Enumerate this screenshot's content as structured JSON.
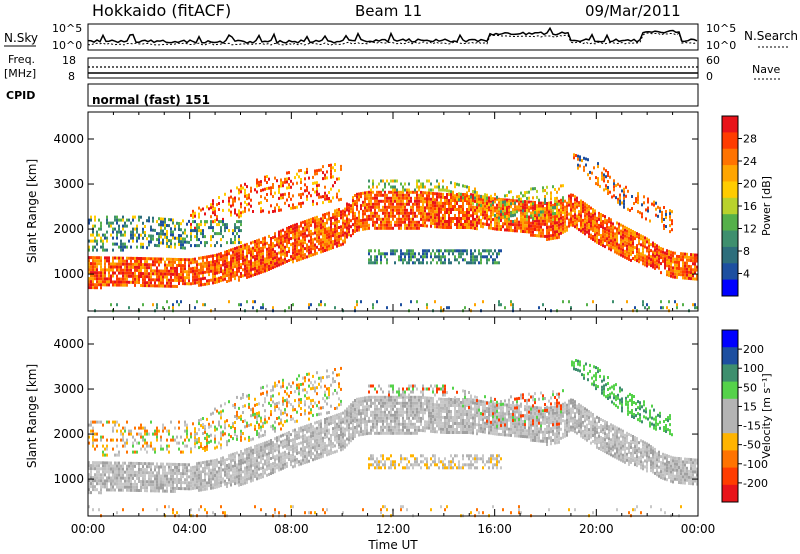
{
  "header": {
    "station": "Hokkaido (fitACF)",
    "beam": "Beam 11",
    "date": "09/Mar/2011"
  },
  "params": {
    "nsky_label": "N.Sky",
    "nsky_ticks": [
      "10^5",
      "10^0"
    ],
    "nsearch_label": "N.Search",
    "freq_label_1": "Freq.",
    "freq_label_2": "[MHz]",
    "freq_ticks": [
      "18",
      "8"
    ],
    "nave_label": "Nave",
    "nave_ticks": [
      "60",
      "0"
    ],
    "cpid_label": "CPID",
    "cpid_value": "normal (fast) 151"
  },
  "chart_data": {
    "type": "heatmap",
    "xlabel": "Time UT",
    "x_ticks": [
      "00:00",
      "04:00",
      "08:00",
      "12:00",
      "16:00",
      "20:00",
      "00:00"
    ],
    "xlim_hours": [
      0,
      24
    ],
    "ylabel": "Slant Range [km]",
    "ylim_km": [
      180,
      4600
    ],
    "y_ticks": [
      1000,
      2000,
      3000,
      4000
    ],
    "panels": [
      {
        "name": "power",
        "colorbar_label": "Power [dB]",
        "colorbar_ticks": [
          "28",
          "24",
          "20",
          "16",
          "12",
          "8",
          "4"
        ],
        "colorbar_colors": [
          "#e8131a",
          "#ff3c00",
          "#ff7300",
          "#ffa500",
          "#ffcc00",
          "#b9d22c",
          "#55b04a",
          "#3e8f6e",
          "#2d6e7c",
          "#1d4fa0",
          "#0000ff"
        ],
        "layers": [
          {
            "t": [
              0,
              2,
              4,
              5,
              6,
              7,
              8,
              9,
              10,
              10.5,
              11,
              12,
              13,
              14,
              15,
              16,
              17,
              18,
              18.5,
              19,
              20,
              21,
              22,
              22.5,
              23,
              24
            ],
            "lo": [
              720,
              750,
              760,
              830,
              900,
              1100,
              1300,
              1500,
              1700,
              2000,
              2050,
              2050,
              2050,
              2050,
              2050,
              2000,
              1950,
              1800,
              1850,
              2100,
              1700,
              1400,
              1200,
              1050,
              900,
              900
            ],
            "hi": [
              1400,
              1380,
              1350,
              1450,
              1650,
              1850,
              2100,
              2300,
              2500,
              2800,
              2850,
              2850,
              2850,
              2800,
              2800,
              2700,
              2650,
              2600,
              2650,
              2800,
              2400,
              2100,
              1800,
              1600,
              1500,
              1450
            ],
            "palette": [
              "#e8131a",
              "#ff3c00",
              "#ff7300",
              "#ffa500"
            ],
            "density": 0.85
          },
          {
            "t": [
              4,
              5,
              6,
              7,
              8,
              9,
              10
            ],
            "lo": [
              2000,
              2200,
              2300,
              2400,
              2500,
              2600,
              2700
            ],
            "hi": [
              2400,
              2700,
              3000,
              3200,
              3300,
              3400,
              3500
            ],
            "palette": [
              "#e8131a",
              "#ff3c00",
              "#ff7300",
              "#ffcc00"
            ],
            "density": 0.3
          },
          {
            "t": [
              0,
              2,
              4,
              6
            ],
            "lo": [
              1500,
              1600,
              1600,
              1700
            ],
            "hi": [
              2300,
              2300,
              2200,
              2200
            ],
            "palette": [
              "#55b04a",
              "#3e8f6e",
              "#ffcc00",
              "#1d4fa0",
              "#2d6e7c"
            ],
            "density": 0.45
          },
          {
            "t": [
              11,
              13,
              15,
              16.3
            ],
            "lo": [
              1250,
              1250,
              1250,
              1250
            ],
            "hi": [
              1550,
              1550,
              1550,
              1550
            ],
            "palette": [
              "#1d4fa0",
              "#2d6e7c",
              "#55b04a",
              "#3e8f6e"
            ],
            "density": 0.55
          },
          {
            "t": [
              11,
              14,
              16,
              17,
              18.7
            ],
            "lo": [
              2850,
              2850,
              2200,
              2200,
              2200
            ],
            "hi": [
              3100,
              3100,
              2800,
              2900,
              3000
            ],
            "palette": [
              "#ffa500",
              "#ffcc00",
              "#b9d22c",
              "#55b04a",
              "#3e8f6e"
            ],
            "density": 0.35
          },
          {
            "t": [
              19,
              20,
              21,
              22,
              23
            ],
            "lo": [
              3500,
              3000,
              2500,
              2200,
              1900
            ],
            "hi": [
              3700,
              3500,
              3000,
              2700,
              2400
            ],
            "palette": [
              "#ff3c00",
              "#ff7300",
              "#ffa500",
              "#1d4fa0"
            ],
            "density": 0.35
          },
          {
            "t": [
              0,
              24
            ],
            "lo": [
              200,
              200
            ],
            "hi": [
              420,
              420
            ],
            "palette": [
              "#1d4fa0",
              "#3e8f6e",
              "#ffa500",
              "#55b04a"
            ],
            "density": 0.08
          }
        ]
      },
      {
        "name": "velocity",
        "colorbar_label": "Velocity [m s⁻¹]",
        "colorbar_ticks": [
          "200",
          "100",
          "50",
          "15",
          "-15",
          "-50",
          "-100",
          "-200"
        ],
        "colorbar_colors": [
          "#0000ff",
          "#1d4fa0",
          "#3e8f6e",
          "#55d24a",
          "#b4b4b4",
          "#b4b4b4",
          "#ffb400",
          "#ff7300",
          "#ff3c00",
          "#e8131a"
        ],
        "layers": [
          {
            "t": [
              0,
              2,
              4,
              5,
              6,
              7,
              8,
              9,
              10,
              10.5,
              11,
              12,
              13,
              14,
              15,
              16,
              17,
              18,
              18.5,
              19,
              20,
              21,
              22,
              22.5,
              23,
              24
            ],
            "lo": [
              720,
              750,
              760,
              830,
              900,
              1100,
              1300,
              1500,
              1700,
              2000,
              2050,
              2050,
              2050,
              2050,
              2050,
              2000,
              1950,
              1800,
              1850,
              2100,
              1700,
              1400,
              1200,
              1050,
              900,
              900
            ],
            "hi": [
              1400,
              1380,
              1350,
              1450,
              1650,
              1850,
              2100,
              2300,
              2500,
              2800,
              2850,
              2850,
              2850,
              2800,
              2800,
              2700,
              2650,
              2600,
              2650,
              2800,
              2400,
              2100,
              1800,
              1600,
              1500,
              1450
            ],
            "palette": [
              "#c8c8c8",
              "#bebebe",
              "#b4b4b4",
              "#c8c8c8",
              "#a0a0a0"
            ],
            "density": 0.85
          },
          {
            "t": [
              0,
              2,
              4,
              6,
              8,
              10
            ],
            "lo": [
              1500,
              1600,
              1600,
              1800,
              2200,
              2600
            ],
            "hi": [
              2300,
              2300,
              2300,
              2900,
              3300,
              3500
            ],
            "palette": [
              "#c8c8c8",
              "#b4b4b4",
              "#ffb400",
              "#55d24a",
              "#ff7300"
            ],
            "density": 0.3
          },
          {
            "t": [
              11,
              13,
              15,
              16.3
            ],
            "lo": [
              1250,
              1250,
              1250,
              1250
            ],
            "hi": [
              1550,
              1550,
              1550,
              1550
            ],
            "palette": [
              "#c8c8c8",
              "#b4b4b4",
              "#ffb400"
            ],
            "density": 0.5
          },
          {
            "t": [
              11,
              14,
              16,
              17,
              18.7
            ],
            "lo": [
              2850,
              2850,
              2200,
              2200,
              2200
            ],
            "hi": [
              3100,
              3100,
              2800,
              2900,
              3000
            ],
            "palette": [
              "#c8c8c8",
              "#b4b4b4",
              "#55d24a",
              "#ff3c00"
            ],
            "density": 0.35
          },
          {
            "t": [
              19,
              20,
              21,
              22,
              23
            ],
            "lo": [
              3500,
              3000,
              2500,
              2200,
              1900
            ],
            "hi": [
              3700,
              3500,
              3000,
              2700,
              2400
            ],
            "palette": [
              "#55d24a",
              "#55d24a",
              "#3e8f6e"
            ],
            "density": 0.45
          },
          {
            "t": [
              0,
              24
            ],
            "lo": [
              200,
              200
            ],
            "hi": [
              420,
              420
            ],
            "palette": [
              "#ffb400",
              "#ff7300",
              "#c8c8c8"
            ],
            "density": 0.08
          }
        ]
      }
    ]
  }
}
